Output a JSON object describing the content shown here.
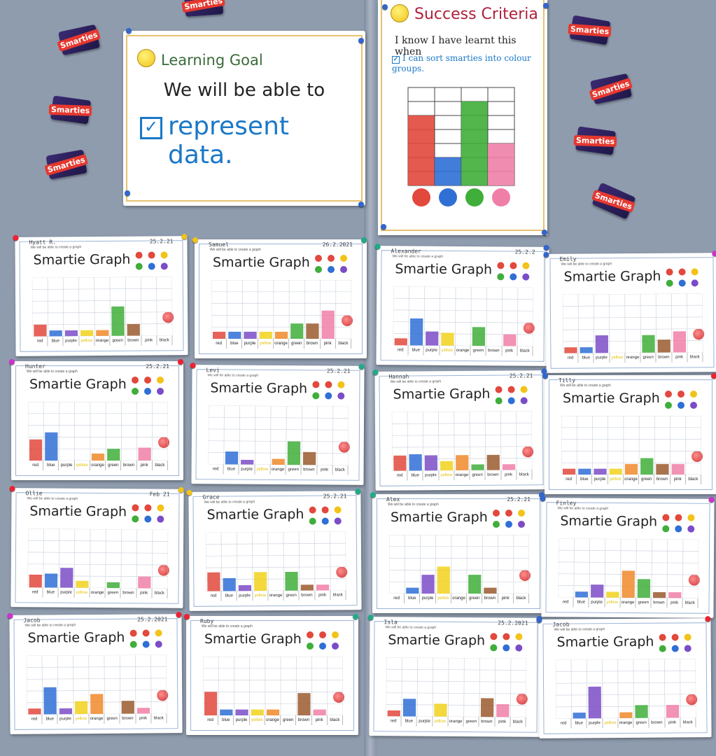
{
  "learning_goal": {
    "title": "Learning Goal",
    "line1": "We will be able to",
    "line2": "represent data."
  },
  "success_criteria": {
    "title": "Success Criteria",
    "line1": "I know I have learnt this when",
    "line2": "I can sort smarties into colour groups."
  },
  "box_text": "Smarties",
  "sheet_title": "Smartie Graph",
  "sheet_goal": "We will be able to create a graph",
  "categories": [
    "red",
    "blue",
    "purple",
    "yellow",
    "orange",
    "green",
    "brown",
    "pink",
    "black"
  ],
  "colors": {
    "red": "#e2483c",
    "blue": "#2f6fd6",
    "purple": "#7b4cc7",
    "yellow": "#f1d21c",
    "orange": "#f08a2a",
    "green": "#3fae3a",
    "brown": "#9a5a2e",
    "pink": "#f07fa8",
    "black": "#222222"
  },
  "example_chart": {
    "values": [
      5,
      2,
      6,
      3
    ]
  },
  "sheets": [
    {
      "name": "Hyatt R.",
      "date": "25.2.21",
      "values": [
        1,
        0.5,
        0.5,
        0.5,
        0.5,
        2.5,
        1,
        0,
        0
      ]
    },
    {
      "name": "Samuel",
      "date": "26.2.2021",
      "values": [
        0.6,
        0.6,
        0.6,
        0.6,
        0.6,
        1.3,
        1.3,
        2.4,
        0
      ]
    },
    {
      "name": "Alexander",
      "date": "25.2.2",
      "values": [
        0.6,
        2.3,
        1.2,
        1.1,
        0,
        1.6,
        0,
        1,
        0
      ]
    },
    {
      "name": "Emily",
      "date": "",
      "values": [
        0.5,
        0.5,
        1.5,
        0,
        0,
        1.5,
        1.1,
        1.8,
        0
      ]
    },
    {
      "name": "Hunter",
      "date": "25.2.21",
      "values": [
        1.8,
        2.4,
        0,
        0,
        0.6,
        1,
        0,
        1.1,
        0
      ]
    },
    {
      "name": "Levi",
      "date": "25.2.21",
      "values": [
        0,
        1.1,
        0.4,
        0,
        0.5,
        2,
        1.1,
        0,
        0
      ]
    },
    {
      "name": "Hannah",
      "date": "25.2.21",
      "values": [
        1.3,
        1.4,
        1.3,
        0.8,
        1.3,
        0.5,
        1.3,
        0.5,
        0
      ]
    },
    {
      "name": "Tilly",
      "date": "",
      "values": [
        0.5,
        0.5,
        0.5,
        0.5,
        0.9,
        1.4,
        0.9,
        0.9,
        0
      ]
    },
    {
      "name": "Ollie",
      "date": "Feb 21",
      "values": [
        1.1,
        1.2,
        1.7,
        0.6,
        0,
        0.5,
        0,
        1,
        0
      ]
    },
    {
      "name": "Grace",
      "date": "25.2.21",
      "values": [
        1.6,
        1.1,
        0.5,
        1.6,
        0,
        1.6,
        0.5,
        0.5,
        0
      ]
    },
    {
      "name": "Alex",
      "date": "25.2.21",
      "values": [
        0,
        0.5,
        1.6,
        2.3,
        0,
        1.6,
        0.5,
        0,
        0
      ]
    },
    {
      "name": "Finley",
      "date": "",
      "values": [
        0,
        0.5,
        1.1,
        0.5,
        2.3,
        1.6,
        0.5,
        0.5,
        0
      ]
    },
    {
      "name": "Jacob",
      "date": "25.2.2021",
      "values": [
        0.5,
        2.3,
        0.5,
        1.1,
        1.7,
        0,
        1.1,
        0.5,
        0
      ]
    },
    {
      "name": "Ruby",
      "date": "",
      "values": [
        2,
        0.5,
        0.5,
        0.5,
        0.5,
        0,
        1.9,
        0.5,
        0
      ]
    },
    {
      "name": "Isla",
      "date": "25.2.2021",
      "values": [
        0.5,
        1.5,
        0,
        1.1,
        0,
        0,
        1.6,
        1.1,
        0
      ]
    },
    {
      "name": "Jacob",
      "date": "",
      "values": [
        0,
        0.5,
        2.7,
        0,
        0.5,
        1.1,
        0,
        1.1,
        0
      ]
    }
  ]
}
